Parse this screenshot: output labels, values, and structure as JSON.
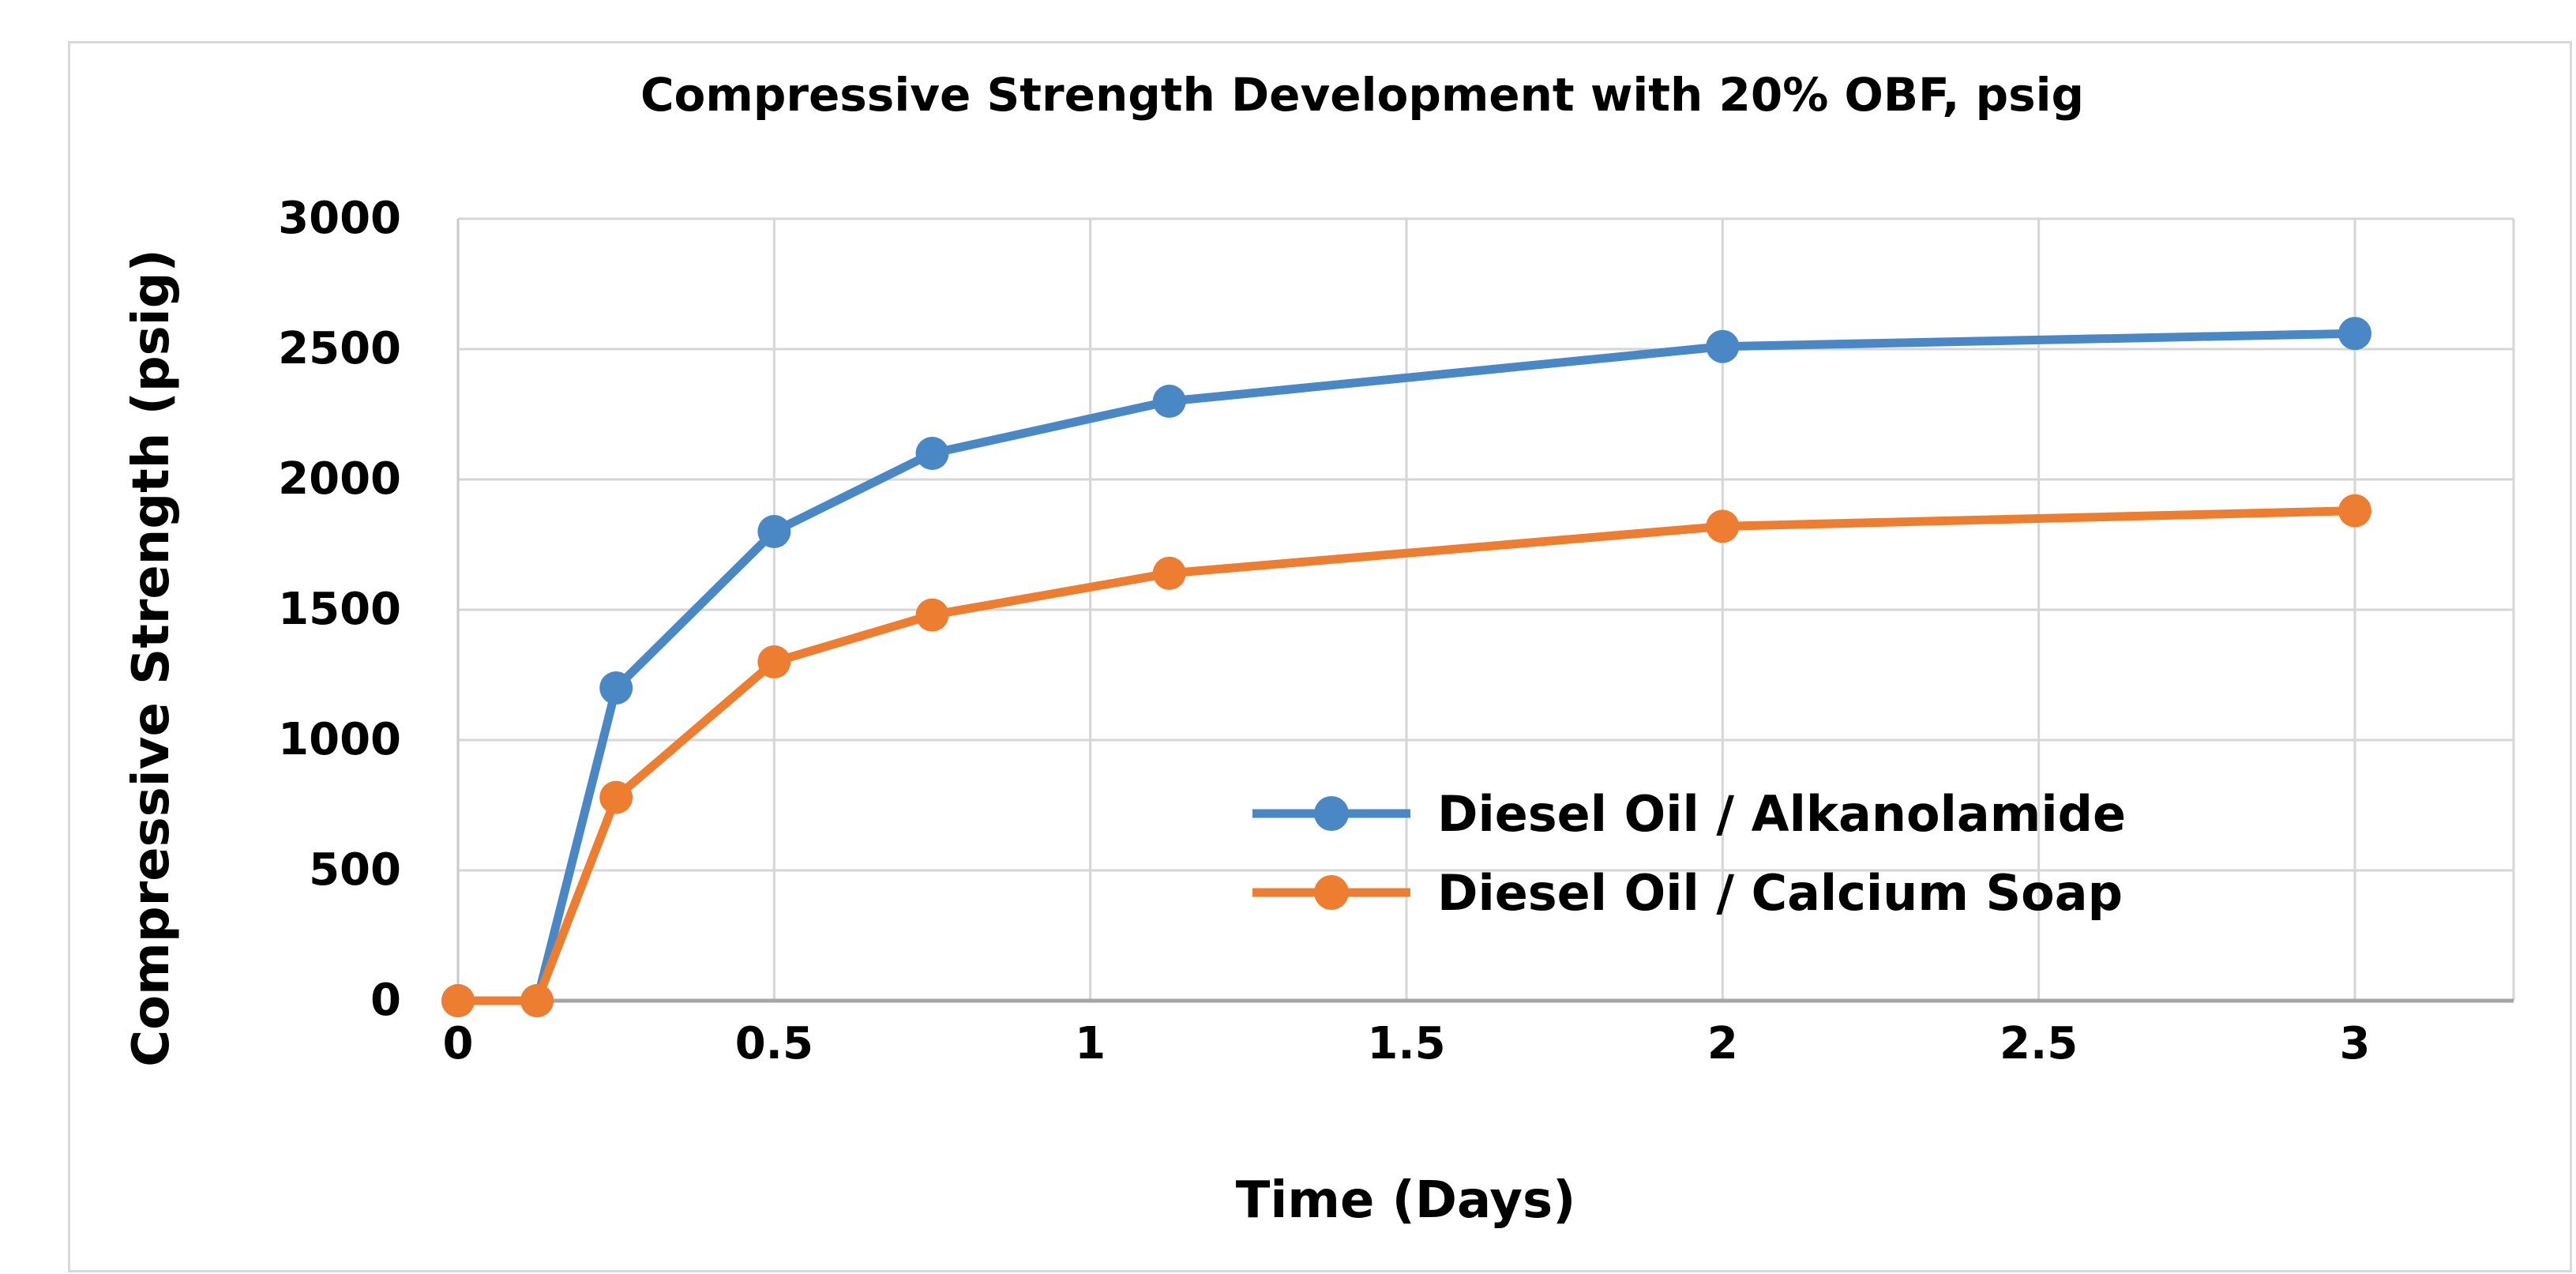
{
  "chart_data": {
    "type": "line",
    "title": "Compressive Strength Development with 20% OBF, psig",
    "xlabel": "Time (Days)",
    "ylabel": "Compressive Strength (psig)",
    "x": [
      0,
      0.125,
      0.25,
      0.5,
      0.75,
      1.125,
      2,
      3
    ],
    "series": [
      {
        "name": "Diesel Oil / Alkanolamide",
        "color": "#4A87C5",
        "values": [
          0,
          0,
          1200,
          1800,
          2100,
          2300,
          2510,
          2560
        ]
      },
      {
        "name": "Diesel Oil / Calcium Soap",
        "color": "#ED7D31",
        "values": [
          0,
          0,
          780,
          1300,
          1480,
          1640,
          1820,
          1880
        ]
      }
    ],
    "xlim": [
      0,
      3.25
    ],
    "ylim": [
      0,
      3000
    ],
    "x_ticks": [
      0,
      0.5,
      1,
      1.5,
      2,
      2.5,
      3
    ],
    "x_tick_labels": [
      "0",
      "0.5",
      "1",
      "1.5",
      "2",
      "2.5",
      "3"
    ],
    "y_ticks": [
      0,
      500,
      1000,
      1500,
      2000,
      2500,
      3000
    ],
    "y_tick_labels": [
      "0",
      "500",
      "1000",
      "1500",
      "2000",
      "2500",
      "3000"
    ],
    "grid": true,
    "legend_position": "inside-right-middle",
    "colors": {
      "gridline": "#d6d6d6",
      "y_axis_line": "#c9c9c9",
      "zero_axis_line": "#a6a6a6",
      "chart_border": "#d9d9d9",
      "text": "#000000"
    }
  }
}
